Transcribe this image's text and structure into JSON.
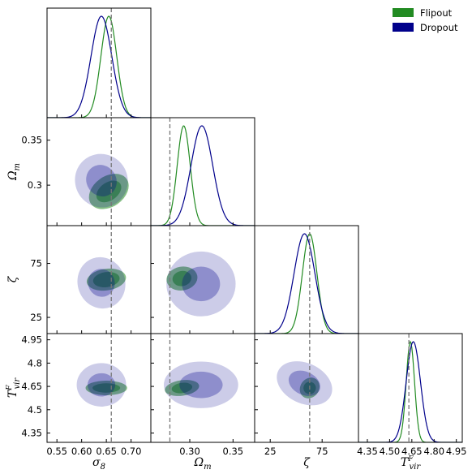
{
  "chart_data": {
    "type": "corner",
    "parameters": [
      {
        "name": "sigma8",
        "label": "σ",
        "sub": "8",
        "sup": "",
        "truth": 0.66,
        "range": [
          0.53,
          0.74
        ],
        "ticks": [
          0.55,
          0.6,
          0.65,
          0.7
        ],
        "tick_labels": [
          "0.55",
          "0.60",
          "0.65",
          "0.70"
        ]
      },
      {
        "name": "omega_m",
        "label": "Ω",
        "sub": "m",
        "sup": "",
        "truth": 0.277,
        "range": [
          0.255,
          0.375
        ],
        "ticks": [
          0.3,
          0.35
        ],
        "tick_labels": [
          "0.30",
          "0.35"
        ]
      },
      {
        "name": "zeta",
        "label": "ζ",
        "sub": "",
        "sup": "",
        "truth": 63,
        "range": [
          10,
          110
        ],
        "ticks": [
          25,
          75
        ],
        "tick_labels": [
          "25",
          "75"
        ]
      },
      {
        "name": "tvir",
        "label": "T",
        "sub": "vir",
        "sup": "F",
        "truth": 4.63,
        "range": [
          4.29,
          4.99
        ],
        "ticks": [
          4.35,
          4.5,
          4.65,
          4.8,
          4.95
        ],
        "tick_labels": [
          "4.35",
          "4.50",
          "4.65",
          "4.80",
          "4.95"
        ]
      }
    ],
    "y_ticks": {
      "omega_m": {
        "ticks": [
          0.3,
          0.35
        ],
        "labels": [
          "0.3",
          "0.35"
        ]
      },
      "zeta": {
        "ticks": [
          25,
          75
        ],
        "labels": [
          "25",
          "75"
        ]
      },
      "tvir": {
        "ticks": [
          4.35,
          4.5,
          4.65,
          4.8,
          4.95
        ],
        "labels": [
          "4.35",
          "4.5",
          "4.65",
          "4.8",
          "4.95"
        ]
      }
    },
    "series": [
      {
        "name": "Flipout",
        "color": "#228b22",
        "marginals": [
          {
            "mean": 0.655,
            "sd": 0.016
          },
          {
            "mean": 0.293,
            "sd": 0.0075
          },
          {
            "mean": 63,
            "sd": 7
          },
          {
            "mean": 4.64,
            "sd": 0.028
          }
        ],
        "joint": [
          {
            "pair": [
              "sigma8",
              "omega_m"
            ],
            "cx": 0.655,
            "cy": 0.293,
            "rx1": 0.028,
            "ry1": 0.01,
            "rx2": 0.044,
            "ry2": 0.017,
            "angle": -35
          },
          {
            "pair": [
              "sigma8",
              "zeta"
            ],
            "cx": 0.65,
            "cy": 60,
            "rx1": 0.027,
            "ry1": 7,
            "rx2": 0.04,
            "ry2": 10,
            "angle": -8
          },
          {
            "pair": [
              "sigma8",
              "tvir"
            ],
            "cx": 0.65,
            "cy": 4.64,
            "rx1": 0.028,
            "ry1": 0.03,
            "rx2": 0.042,
            "ry2": 0.047,
            "angle": 0
          },
          {
            "pair": [
              "omega_m",
              "zeta"
            ],
            "cx": 0.291,
            "cy": 61,
            "rx1": 0.011,
            "ry1": 7,
            "rx2": 0.018,
            "ry2": 11,
            "angle": -10
          },
          {
            "pair": [
              "omega_m",
              "tvir"
            ],
            "cx": 0.291,
            "cy": 4.64,
            "rx1": 0.012,
            "ry1": 0.033,
            "rx2": 0.02,
            "ry2": 0.05,
            "angle": -8
          },
          {
            "pair": [
              "zeta",
              "tvir"
            ],
            "cx": 63,
            "cy": 4.64,
            "rx1": 6,
            "ry1": 0.04,
            "rx2": 9,
            "ry2": 0.07,
            "angle": 35
          }
        ]
      },
      {
        "name": "Dropout",
        "color": "#00008b",
        "marginals": [
          {
            "mean": 0.64,
            "sd": 0.021
          },
          {
            "mean": 0.314,
            "sd": 0.0125
          },
          {
            "mean": 58,
            "sd": 10
          },
          {
            "mean": 4.66,
            "sd": 0.048
          }
        ],
        "joint": [
          {
            "pair": [
              "sigma8",
              "omega_m"
            ],
            "cx": 0.64,
            "cy": 0.305,
            "rx1": 0.03,
            "ry1": 0.018,
            "rx2": 0.053,
            "ry2": 0.03,
            "angle": -35
          },
          {
            "pair": [
              "sigma8",
              "zeta"
            ],
            "cx": 0.64,
            "cy": 57,
            "rx1": 0.027,
            "ry1": 13,
            "rx2": 0.048,
            "ry2": 24,
            "angle": -20
          },
          {
            "pair": [
              "sigma8",
              "tvir"
            ],
            "cx": 0.64,
            "cy": 4.66,
            "rx1": 0.028,
            "ry1": 0.075,
            "rx2": 0.05,
            "ry2": 0.14,
            "angle": 0
          },
          {
            "pair": [
              "omega_m",
              "zeta"
            ],
            "cx": 0.313,
            "cy": 56,
            "rx1": 0.022,
            "ry1": 16,
            "rx2": 0.04,
            "ry2": 30,
            "angle": 0
          },
          {
            "pair": [
              "omega_m",
              "tvir"
            ],
            "cx": 0.313,
            "cy": 4.66,
            "rx1": 0.025,
            "ry1": 0.085,
            "rx2": 0.043,
            "ry2": 0.15,
            "angle": 0
          },
          {
            "pair": [
              "zeta",
              "tvir"
            ],
            "cx": 58,
            "cy": 4.67,
            "rx1": 16,
            "ry1": 0.075,
            "rx2": 28,
            "ry2": 0.13,
            "angle": 25
          }
        ]
      }
    ],
    "legend": {
      "placement": "top-right"
    }
  }
}
